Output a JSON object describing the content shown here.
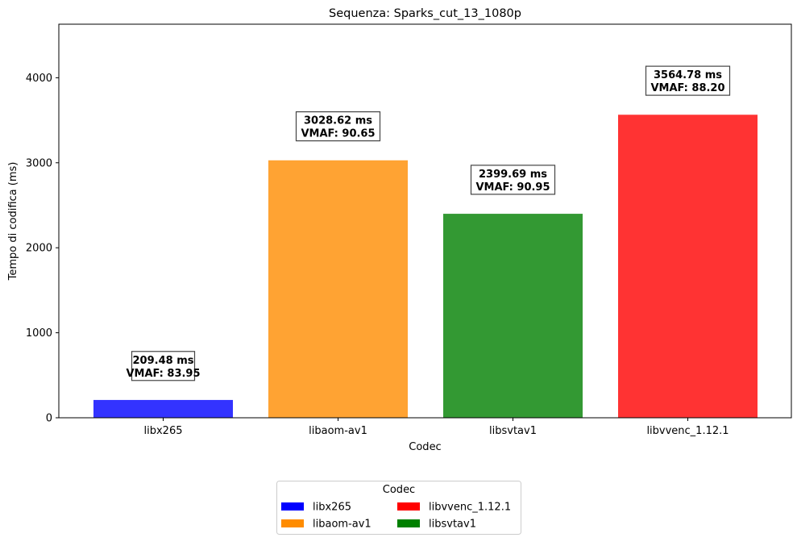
{
  "chart_data": {
    "type": "bar",
    "title": "Sequenza: Sparks_cut_13_1080p",
    "xlabel": "Codec",
    "ylabel": "Tempo di codifica (ms)",
    "ylim": [
      0,
      4630
    ],
    "yticks": [
      0,
      1000,
      2000,
      3000,
      4000
    ],
    "categories": [
      "libx265",
      "libaom-av1",
      "libsvtav1",
      "libvvenc_1.12.1"
    ],
    "values": [
      209.48,
      3028.62,
      2399.69,
      3564.78
    ],
    "vmaf": [
      83.95,
      90.65,
      90.95,
      88.2
    ],
    "colors": [
      "#3333ff",
      "#ffa333",
      "#339933",
      "#ff3333"
    ],
    "bar_labels": [
      [
        "209.48 ms",
        "VMAF: 83.95"
      ],
      [
        "3028.62 ms",
        "VMAF: 90.65"
      ],
      [
        "2399.69 ms",
        "VMAF: 90.95"
      ],
      [
        "3564.78 ms",
        "VMAF: 88.20"
      ]
    ],
    "grid": false,
    "legend": {
      "title": "Codec",
      "placement": "bottom-center",
      "entries": [
        {
          "label": "libx265",
          "color": "#0000ff"
        },
        {
          "label": "libvvenc_1.12.1",
          "color": "#ff0000"
        },
        {
          "label": "libaom-av1",
          "color": "#ff8c00"
        },
        {
          "label": "libsvtav1",
          "color": "#008000"
        }
      ]
    }
  }
}
